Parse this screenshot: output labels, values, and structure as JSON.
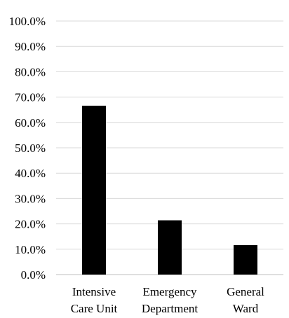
{
  "chart_data": {
    "type": "bar",
    "categories": [
      [
        "Intensive",
        "Care Unit"
      ],
      [
        "Emergency",
        "Department"
      ],
      [
        "General",
        "Ward"
      ]
    ],
    "values": [
      0.666,
      0.214,
      0.116
    ],
    "y_tick_labels": [
      "0.0%",
      "10.0%",
      "20.0%",
      "30.0%",
      "40.0%",
      "50.0%",
      "60.0%",
      "70.0%",
      "80.0%",
      "90.0%",
      "100.0%"
    ],
    "ylim": [
      0,
      1
    ],
    "grid": true,
    "legend": "none",
    "title": "",
    "xlabel": "",
    "ylabel": "",
    "colors": {
      "bar": "#000000",
      "grid": "#d9d9d9"
    }
  }
}
